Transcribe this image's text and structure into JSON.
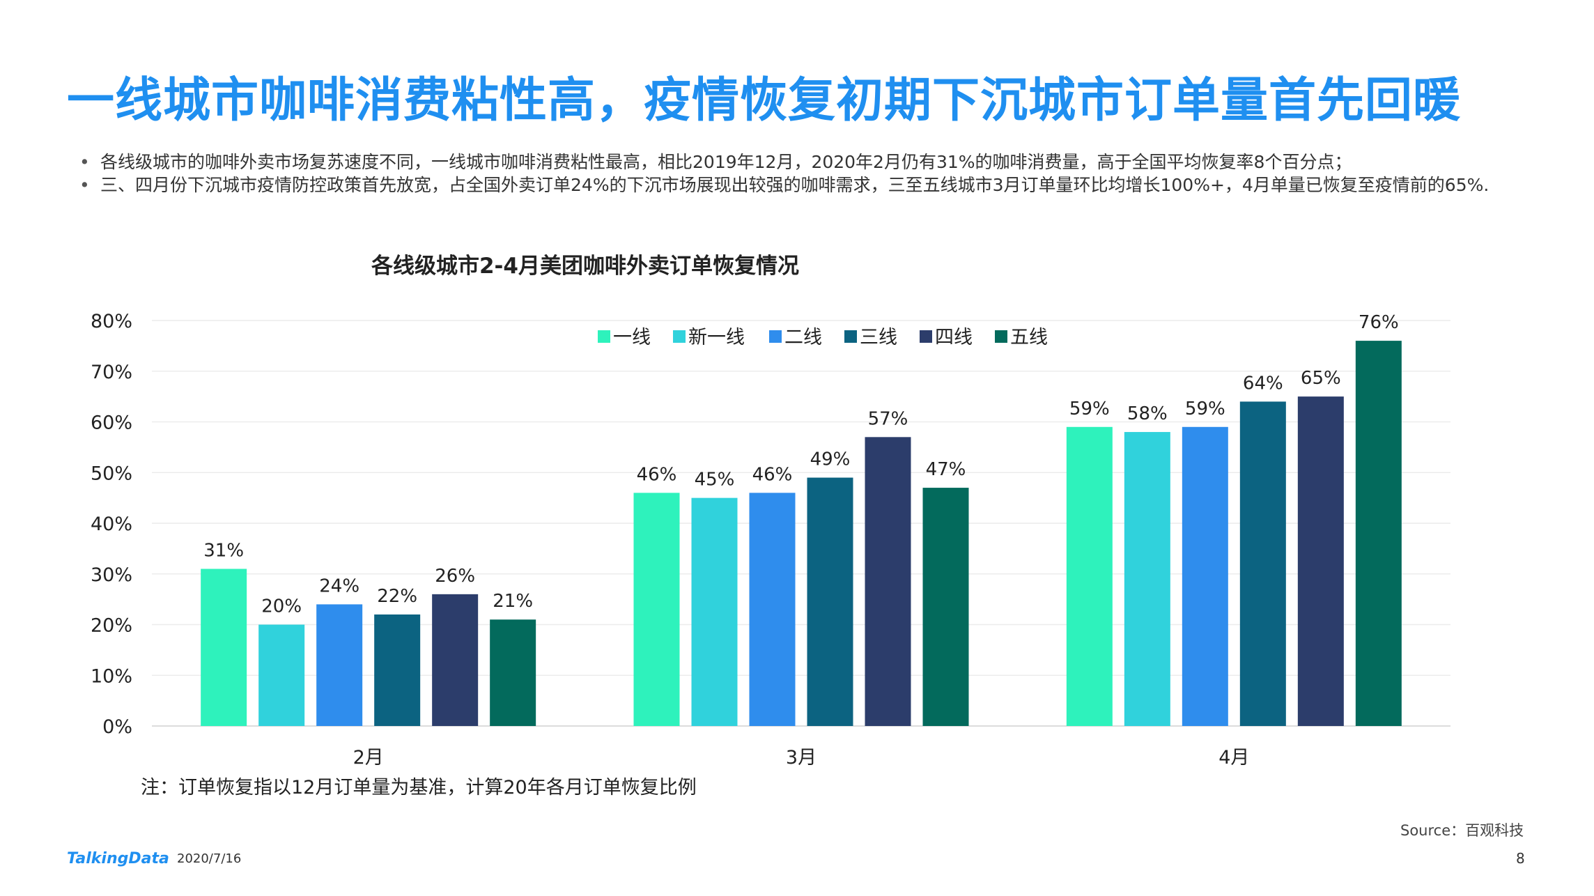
{
  "header": {
    "title": "一线城市咖啡消费粘性高，疫情恢复初期下沉城市订单量首先回暖"
  },
  "bullets": [
    "各线级城市的咖啡外卖市场复苏速度不同，一线城市咖啡消费粘性最高，相比2019年12月，2020年2月仍有31%的咖啡消费量，高于全国平均恢复率8个百分点；",
    "三、四月份下沉城市疫情防控政策首先放宽，占全国外卖订单24%的下沉市场展现出较强的咖啡需求，三至五线城市3月订单量环比均增长100%+，4月单量已恢复至疫情前的65%."
  ],
  "bullet_symbol": "•",
  "chart_data": {
    "type": "bar",
    "title": "各线级城市2-4月美团咖啡外卖订单恢复情况",
    "categories": [
      "2月",
      "3月",
      "4月"
    ],
    "ylim": [
      0,
      80
    ],
    "yticks": [
      "0%",
      "10%",
      "20%",
      "30%",
      "40%",
      "50%",
      "60%",
      "70%",
      "80%"
    ],
    "grid": true,
    "legend_position": "top",
    "series": [
      {
        "name": "一线",
        "color": "#2ef2bc",
        "values": [
          31,
          46,
          59
        ],
        "labels": [
          "31%",
          "46%",
          "59%"
        ]
      },
      {
        "name": "新一线",
        "color": "#30d2dc",
        "values": [
          20,
          45,
          58
        ],
        "labels": [
          "20%",
          "45%",
          "58%"
        ]
      },
      {
        "name": "二线",
        "color": "#2f8ded",
        "values": [
          24,
          46,
          59
        ],
        "labels": [
          "24%",
          "46%",
          "59%"
        ]
      },
      {
        "name": "三线",
        "color": "#0c6381",
        "values": [
          22,
          49,
          64
        ],
        "labels": [
          "22%",
          "49%",
          "64%"
        ]
      },
      {
        "name": "四线",
        "color": "#2c3d6b",
        "values": [
          26,
          57,
          65
        ],
        "labels": [
          "26%",
          "57%",
          "65%"
        ]
      },
      {
        "name": "五线",
        "color": "#036a5c",
        "values": [
          21,
          47,
          76
        ],
        "labels": [
          "21%",
          "47%",
          "76%"
        ]
      }
    ]
  },
  "note": "注：订单恢复指以12月订单量为基准，计算20年各月订单恢复比例",
  "footer": {
    "source": "Source：百观科技",
    "logo": "TalkingData",
    "date": "2020/7/16",
    "page": "8"
  }
}
